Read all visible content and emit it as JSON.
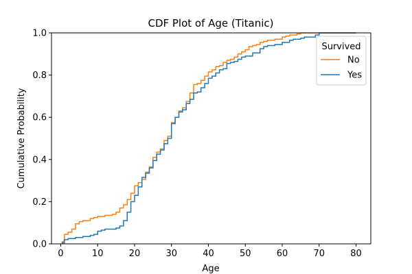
{
  "chart_data": {
    "type": "line",
    "subtype": "ecdf-step",
    "title": "CDF Plot of Age (Titanic)",
    "xlabel": "Age",
    "ylabel": "Cumulative Probability",
    "xlim": [
      -2.5,
      84
    ],
    "ylim": [
      0,
      1
    ],
    "xticks": [
      0,
      10,
      20,
      30,
      40,
      50,
      60,
      70,
      80
    ],
    "yticks": [
      0.0,
      0.2,
      0.4,
      0.6,
      0.8,
      1.0
    ],
    "xtick_labels": [
      "0",
      "10",
      "20",
      "30",
      "40",
      "50",
      "60",
      "70",
      "80"
    ],
    "ytick_labels": [
      "0.0",
      "0.2",
      "0.4",
      "0.6",
      "0.8",
      "1.0"
    ],
    "grid": false,
    "legend": {
      "title": "Survived",
      "position": "top-right",
      "entries": [
        "No",
        "Yes"
      ]
    },
    "series": [
      {
        "name": "No",
        "color": "#ff7f0e",
        "points": [
          [
            0.4,
            0.01
          ],
          [
            0.9,
            0.02
          ],
          [
            1,
            0.045
          ],
          [
            2,
            0.055
          ],
          [
            3,
            0.07
          ],
          [
            4,
            0.095
          ],
          [
            5,
            0.105
          ],
          [
            6,
            0.11
          ],
          [
            8,
            0.12
          ],
          [
            9,
            0.125
          ],
          [
            10,
            0.13
          ],
          [
            12,
            0.135
          ],
          [
            14,
            0.14
          ],
          [
            15,
            0.15
          ],
          [
            16,
            0.17
          ],
          [
            17,
            0.185
          ],
          [
            18,
            0.21
          ],
          [
            19,
            0.24
          ],
          [
            20,
            0.275
          ],
          [
            21,
            0.29
          ],
          [
            22,
            0.305
          ],
          [
            23,
            0.34
          ],
          [
            24,
            0.365
          ],
          [
            25,
            0.41
          ],
          [
            26,
            0.435
          ],
          [
            27,
            0.45
          ],
          [
            28,
            0.49
          ],
          [
            29,
            0.51
          ],
          [
            30,
            0.575
          ],
          [
            31,
            0.6
          ],
          [
            32,
            0.63
          ],
          [
            33,
            0.645
          ],
          [
            34,
            0.675
          ],
          [
            35,
            0.715
          ],
          [
            36,
            0.755
          ],
          [
            37,
            0.76
          ],
          [
            38,
            0.775
          ],
          [
            39,
            0.795
          ],
          [
            40,
            0.815
          ],
          [
            41,
            0.825
          ],
          [
            42,
            0.84
          ],
          [
            43,
            0.845
          ],
          [
            44,
            0.86
          ],
          [
            45,
            0.87
          ],
          [
            46,
            0.875
          ],
          [
            47,
            0.885
          ],
          [
            48,
            0.9
          ],
          [
            49,
            0.91
          ],
          [
            50,
            0.92
          ],
          [
            51,
            0.935
          ],
          [
            52,
            0.94
          ],
          [
            53,
            0.945
          ],
          [
            54,
            0.955
          ],
          [
            55,
            0.96
          ],
          [
            56,
            0.965
          ],
          [
            58,
            0.97
          ],
          [
            60,
            0.98
          ],
          [
            61,
            0.985
          ],
          [
            62,
            0.99
          ],
          [
            64,
            0.995
          ],
          [
            65,
            1.0
          ],
          [
            80,
            1.0
          ]
        ]
      },
      {
        "name": "Yes",
        "color": "#1f77b4",
        "points": [
          [
            0.4,
            0.005
          ],
          [
            1,
            0.02
          ],
          [
            2,
            0.025
          ],
          [
            4,
            0.03
          ],
          [
            6,
            0.035
          ],
          [
            8,
            0.04
          ],
          [
            9,
            0.045
          ],
          [
            10,
            0.06
          ],
          [
            11,
            0.065
          ],
          [
            12,
            0.07
          ],
          [
            15,
            0.075
          ],
          [
            16,
            0.085
          ],
          [
            17,
            0.11
          ],
          [
            18,
            0.15
          ],
          [
            19,
            0.2
          ],
          [
            20,
            0.23
          ],
          [
            21,
            0.27
          ],
          [
            22,
            0.315
          ],
          [
            23,
            0.335
          ],
          [
            24,
            0.36
          ],
          [
            25,
            0.395
          ],
          [
            26,
            0.425
          ],
          [
            27,
            0.445
          ],
          [
            28,
            0.475
          ],
          [
            29,
            0.5
          ],
          [
            30,
            0.57
          ],
          [
            31,
            0.6
          ],
          [
            32,
            0.625
          ],
          [
            33,
            0.635
          ],
          [
            34,
            0.665
          ],
          [
            35,
            0.685
          ],
          [
            36,
            0.715
          ],
          [
            37,
            0.72
          ],
          [
            38,
            0.74
          ],
          [
            39,
            0.76
          ],
          [
            40,
            0.785
          ],
          [
            41,
            0.795
          ],
          [
            42,
            0.81
          ],
          [
            43,
            0.825
          ],
          [
            44,
            0.83
          ],
          [
            45,
            0.855
          ],
          [
            46,
            0.86
          ],
          [
            47,
            0.865
          ],
          [
            48,
            0.875
          ],
          [
            49,
            0.885
          ],
          [
            50,
            0.89
          ],
          [
            52,
            0.905
          ],
          [
            54,
            0.925
          ],
          [
            55,
            0.935
          ],
          [
            56,
            0.94
          ],
          [
            58,
            0.945
          ],
          [
            60,
            0.955
          ],
          [
            62,
            0.965
          ],
          [
            63,
            0.97
          ],
          [
            65,
            0.975
          ],
          [
            66,
            0.98
          ],
          [
            69,
            0.99
          ],
          [
            70,
            1.0
          ],
          [
            80,
            1.0
          ]
        ]
      }
    ]
  }
}
